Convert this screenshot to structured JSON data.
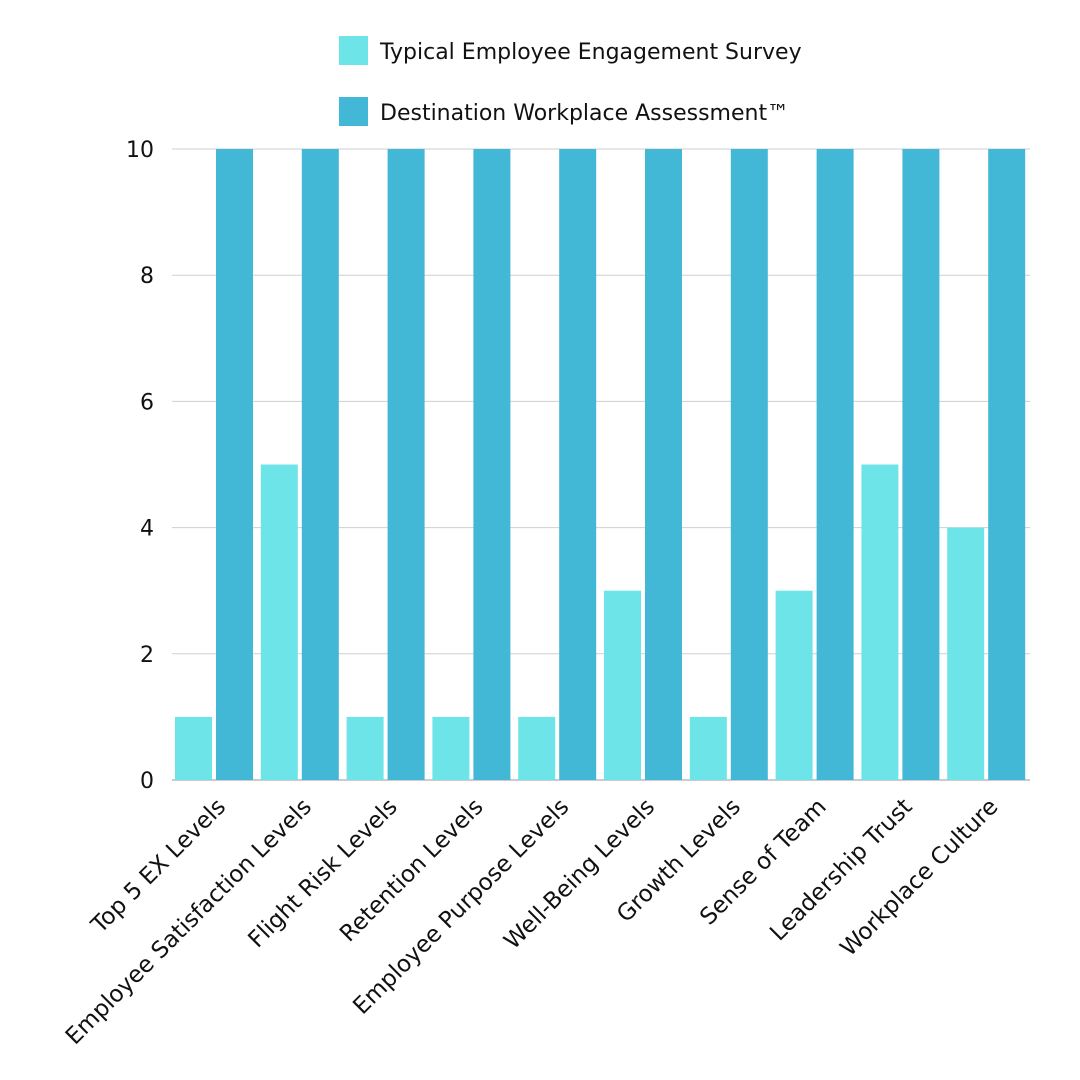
{
  "chart_data": {
    "type": "bar",
    "title": "",
    "xlabel": "",
    "ylabel": "",
    "ylim": [
      0,
      10
    ],
    "yticks": [
      0,
      2,
      4,
      6,
      8,
      10
    ],
    "grid": true,
    "legend_position": "top",
    "categories": [
      "Top 5 EX Levels",
      "Employee Satisfaction Levels",
      "Flight Risk Levels",
      "Retention Levels",
      "Employee Purpose Levels",
      "Well-Being Levels",
      "Growth Levels",
      "Sense of Team",
      "Leadership Trust",
      "Workplace Culture"
    ],
    "series": [
      {
        "name": "Typical Employee Engagement Survey",
        "color": "#6ce4e8",
        "values": [
          1,
          5,
          1,
          1,
          1,
          3,
          1,
          3,
          5,
          4
        ]
      },
      {
        "name": "Destination Workplace Assessment™",
        "color": "#42b8d6",
        "values": [
          10,
          10,
          10,
          10,
          10,
          10,
          10,
          10,
          10,
          10
        ]
      }
    ]
  }
}
